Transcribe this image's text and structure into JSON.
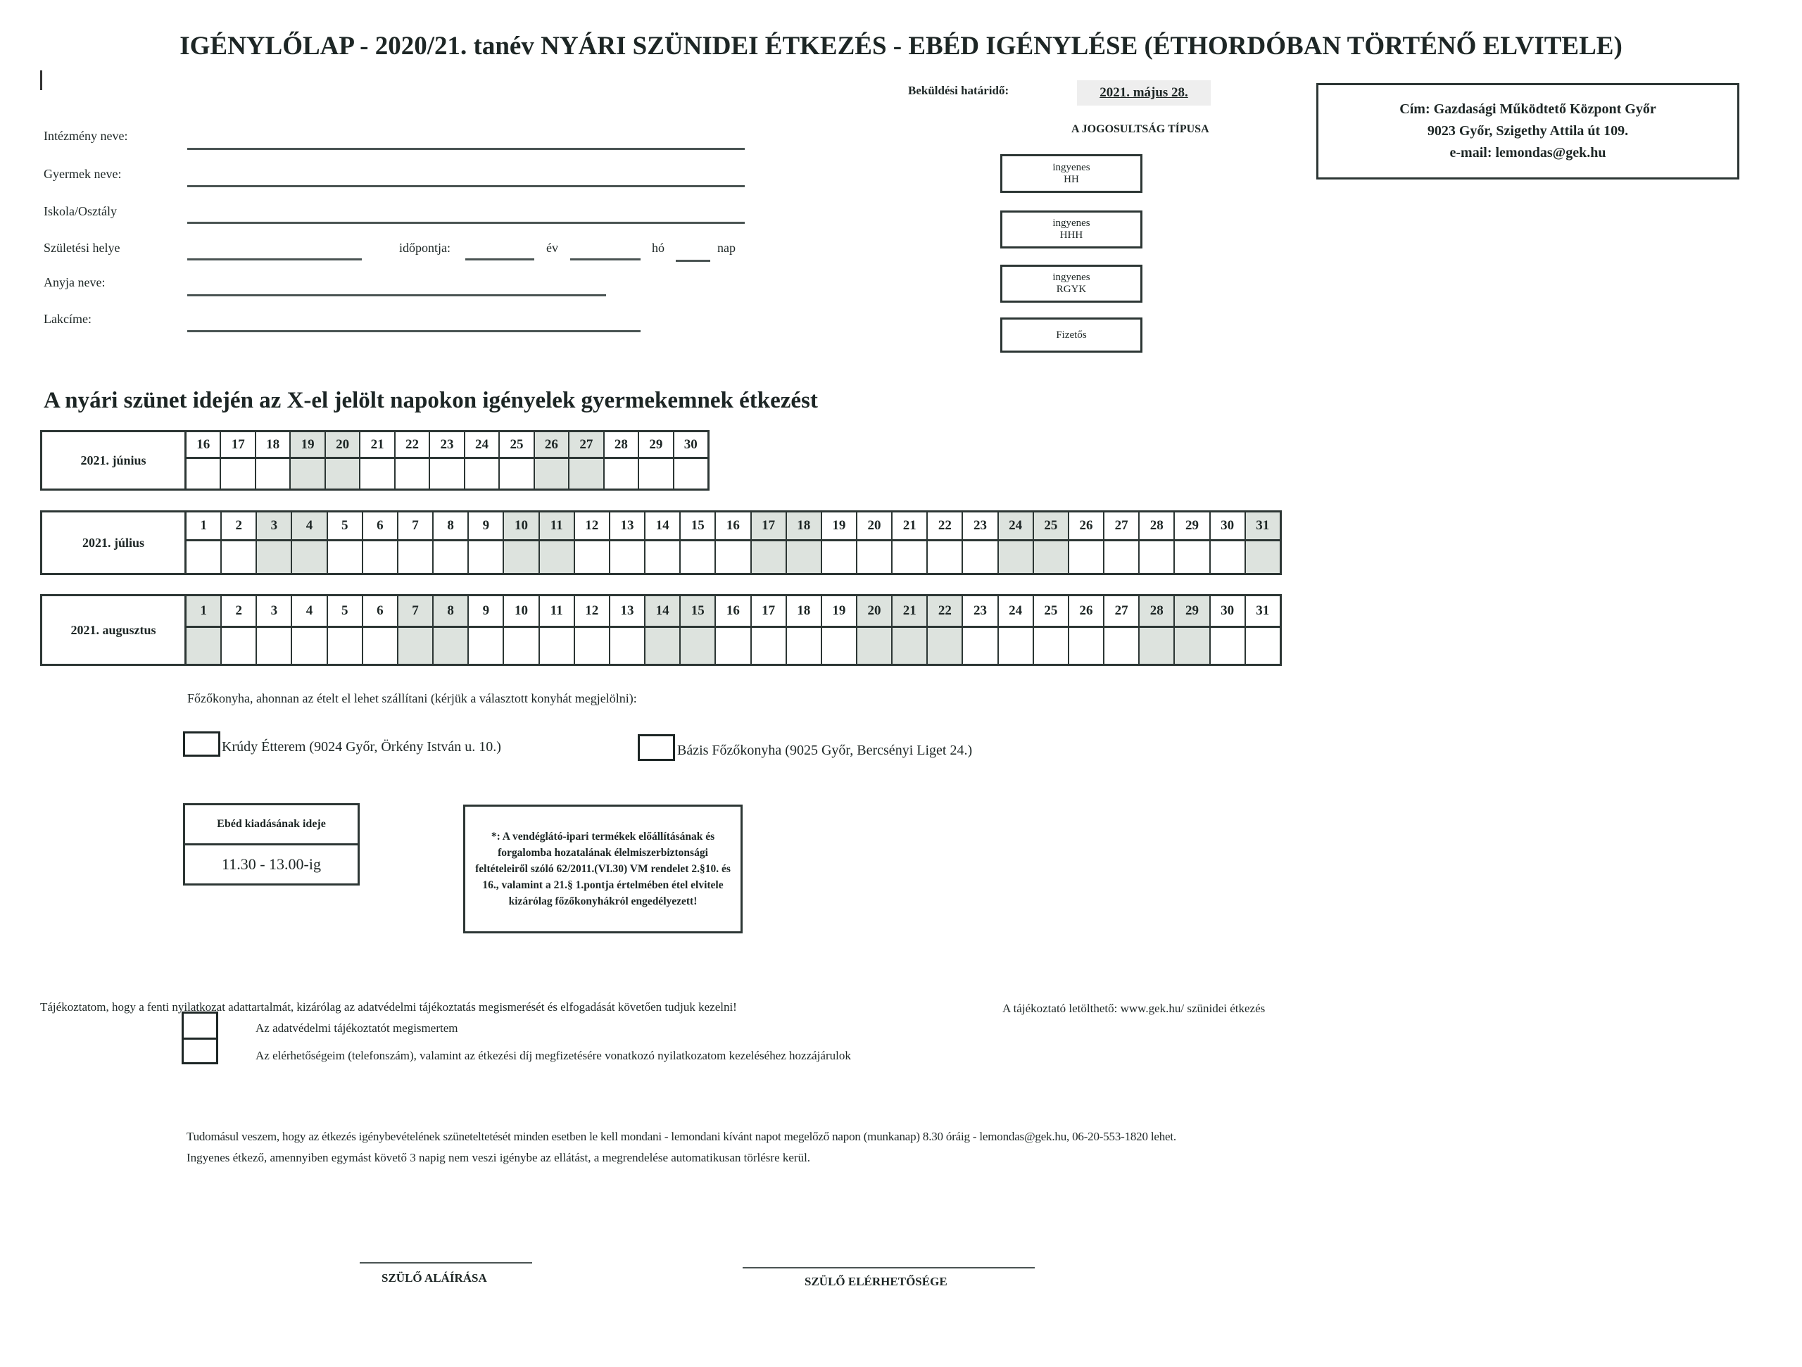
{
  "title": "IGÉNYLŐLAP  - 2020/21. tanév  NYÁRI SZÜNIDEI ÉTKEZÉS  - EBÉD IGÉNYLÉSE  (ÉTHORDÓBAN TÖRTÉNŐ ELVITELE)",
  "deadline": {
    "label": "Beküldési határidő:",
    "value": "2021. május 28."
  },
  "eligibility": {
    "title": "A JOGOSULTSÁG TÍPUSA",
    "options": [
      {
        "line1": "ingyenes",
        "line2": "HH"
      },
      {
        "line1": "ingyenes",
        "line2": "HHH"
      },
      {
        "line1": "ingyenes",
        "line2": "RGYK"
      },
      {
        "line1": "Fizetős",
        "line2": ""
      }
    ]
  },
  "address": {
    "line1": "Cím: Gazdasági Működtető Központ Győr",
    "line2": "9023 Győr, Szigethy Attila út 109.",
    "line3": "e-mail: lemondas@gek.hu"
  },
  "fields": {
    "institution": "Intézmény neve:",
    "child": "Gyermek neve:",
    "school": "Iskola/Osztály",
    "birthplace": "Születési helye",
    "birthdate": "időpontja:",
    "year": "év",
    "month": "hó",
    "day": "nap",
    "mother": "Anyja neve:",
    "address": "Lakcíme:"
  },
  "calendar_heading": "A nyári szünet idején az X-el jelölt napokon igényelek gyermekemnek  étkezést",
  "calendar": [
    {
      "label": "2021. június",
      "days": [
        16,
        17,
        18,
        19,
        20,
        21,
        22,
        23,
        24,
        25,
        26,
        27,
        28,
        29,
        30
      ],
      "shaded": [
        19,
        20,
        26,
        27
      ]
    },
    {
      "label": "2021. július",
      "days": [
        1,
        2,
        3,
        4,
        5,
        6,
        7,
        8,
        9,
        10,
        11,
        12,
        13,
        14,
        15,
        16,
        17,
        18,
        19,
        20,
        21,
        22,
        23,
        24,
        25,
        26,
        27,
        28,
        29,
        30,
        31
      ],
      "shaded": [
        3,
        4,
        10,
        11,
        17,
        18,
        24,
        25,
        31
      ]
    },
    {
      "label": "2021. augusztus",
      "days": [
        1,
        2,
        3,
        4,
        5,
        6,
        7,
        8,
        9,
        10,
        11,
        12,
        13,
        14,
        15,
        16,
        17,
        18,
        19,
        20,
        21,
        22,
        23,
        24,
        25,
        26,
        27,
        28,
        29,
        30,
        31
      ],
      "shaded": [
        1,
        7,
        8,
        14,
        15,
        20,
        21,
        22,
        28,
        29
      ]
    }
  ],
  "shade_color": "#dde3de",
  "kitchen": {
    "prompt": "Főzőkonyha, ahonnan az ételt el lehet szállítani (kérjük a választott konyhát megjelölni):",
    "option1": "Krúdy Étterem (9024 Győr, Örkény István u. 10.)",
    "option2": "Bázis Főzőkonyha (9025 Győr, Bercsényi Liget 24.)"
  },
  "lunch": {
    "label": "Ebéd kiadásának ideje",
    "value": "11.30 - 13.00-ig"
  },
  "note": "*: A vendéglátó-ipari termékek előállításának és forgalomba hozatalának élelmiszerbiztonsági feltételeiről szóló 62/2011.(VI.30) VM rendelet 2.§10. és 16., valamint a 21.§ 1.pontja értelmében étel elvitele kizárólag  főzőkonyhákról engedélyezett!",
  "privacy": {
    "text": "Tájékoztatom, hogy a fenti nyilatkozat adattartalmát, kizárólag az adatvédelmi tájékoztatás megismerését és elfogadását követően  tudjuk kezelni!",
    "link": "A tájékoztató letölthető: www.gek.hu/ szünidei étkezés",
    "check1": "Az adatvédelmi tájékoztatót megismertem",
    "check2": "Az elérhetőségeim (telefonszám), valamint  az étkezési díj megfizetésére vonatkozó nyilatkozatom kezeléséhez hozzájárulok"
  },
  "terms": {
    "line1": "Tudomásul veszem, hogy az étkezés igénybevételének szüneteltetését minden esetben le kell mondani  - lemondani kívánt napot megelőző napon (munkanap) 8.30 óráig  - lemondas@gek.hu, 06-20-553-1820 lehet.",
    "line2": "Ingyenes étkező, amennyiben egymást követő 3 napig nem veszi igénybe az ellátást, a megrendelése automatikusan törlésre kerül."
  },
  "signatures": {
    "parent_signature": "SZÜLŐ ALÁÍRÁSA",
    "parent_contact": "SZÜLŐ ELÉRHETŐSÉGE"
  }
}
